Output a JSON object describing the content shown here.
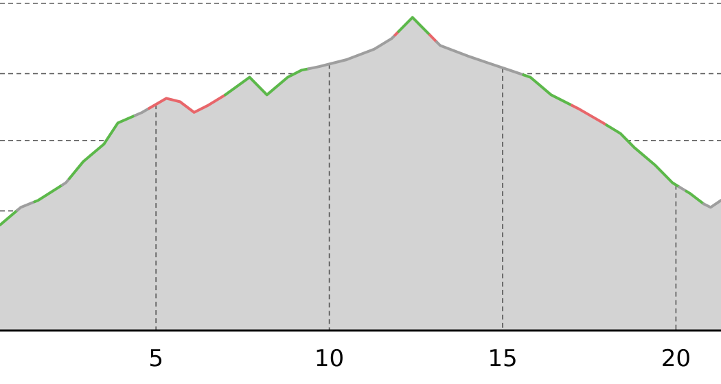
{
  "chart_data": {
    "type": "area",
    "x_unit": "km",
    "xlim": [
      0.5,
      21.3
    ],
    "ylim": [
      0,
      4.6
    ],
    "xticks": [
      {
        "value": 5,
        "label": "5"
      },
      {
        "value": 10,
        "label": "10"
      },
      {
        "value": 15,
        "label": "15"
      },
      {
        "value": 20,
        "label": "20"
      }
    ],
    "y_gridlines": [
      0.7,
      1.7,
      2.7,
      3.65,
      4.65
    ],
    "grid": true,
    "legend": "none",
    "colors": {
      "fill": "#d3d3d3",
      "flat": "#9e9e9e",
      "uphill": "#5cb84a",
      "steep": "#e8666a",
      "gridline": "#555555",
      "axis": "#000000"
    },
    "profile": [
      [
        0.5,
        1.5
      ],
      [
        1.1,
        1.75
      ],
      [
        1.6,
        1.85
      ],
      [
        2.4,
        2.1
      ],
      [
        2.9,
        2.4
      ],
      [
        3.5,
        2.65
      ],
      [
        3.9,
        2.95
      ],
      [
        4.6,
        3.1
      ],
      [
        5.3,
        3.3
      ],
      [
        5.7,
        3.25
      ],
      [
        6.1,
        3.1
      ],
      [
        6.5,
        3.2
      ],
      [
        7.0,
        3.35
      ],
      [
        7.7,
        3.6
      ],
      [
        8.2,
        3.35
      ],
      [
        8.8,
        3.6
      ],
      [
        9.2,
        3.7
      ],
      [
        9.7,
        3.75
      ],
      [
        10.5,
        3.85
      ],
      [
        11.3,
        4.0
      ],
      [
        11.8,
        4.15
      ],
      [
        12.0,
        4.25
      ],
      [
        12.4,
        4.45
      ],
      [
        12.6,
        4.35
      ],
      [
        12.9,
        4.2
      ],
      [
        13.2,
        4.05
      ],
      [
        14.0,
        3.9
      ],
      [
        14.6,
        3.8
      ],
      [
        15.2,
        3.7
      ],
      [
        15.8,
        3.6
      ],
      [
        16.4,
        3.35
      ],
      [
        17.2,
        3.15
      ],
      [
        17.9,
        2.95
      ],
      [
        18.4,
        2.8
      ],
      [
        18.8,
        2.6
      ],
      [
        19.4,
        2.35
      ],
      [
        19.9,
        2.1
      ],
      [
        20.4,
        1.95
      ],
      [
        20.8,
        1.8
      ],
      [
        21.0,
        1.75
      ],
      [
        21.3,
        1.85
      ]
    ],
    "segments": [
      {
        "type": "uphill",
        "from": 0.5,
        "to": 1.0
      },
      {
        "type": "flat",
        "from": 1.0,
        "to": 1.5
      },
      {
        "type": "uphill",
        "from": 1.5,
        "to": 2.3
      },
      {
        "type": "flat",
        "from": 2.3,
        "to": 2.5
      },
      {
        "type": "uphill",
        "from": 2.5,
        "to": 4.4
      },
      {
        "type": "flat",
        "from": 4.4,
        "to": 4.8
      },
      {
        "type": "steep",
        "from": 4.8,
        "to": 5.8
      },
      {
        "type": "steep",
        "from": 5.8,
        "to": 7.0
      },
      {
        "type": "uphill",
        "from": 7.0,
        "to": 9.4
      },
      {
        "type": "flat",
        "from": 9.4,
        "to": 11.9
      },
      {
        "type": "steep",
        "from": 11.9,
        "to": 12.0
      },
      {
        "type": "uphill",
        "from": 12.0,
        "to": 12.9
      },
      {
        "type": "steep",
        "from": 12.9,
        "to": 13.1
      },
      {
        "type": "flat",
        "from": 13.1,
        "to": 15.6
      },
      {
        "type": "uphill",
        "from": 15.6,
        "to": 17.0
      },
      {
        "type": "steep",
        "from": 17.0,
        "to": 18.0
      },
      {
        "type": "uphill",
        "from": 18.0,
        "to": 20.1
      },
      {
        "type": "flat",
        "from": 20.1,
        "to": 20.3
      },
      {
        "type": "uphill",
        "from": 20.3,
        "to": 20.8
      },
      {
        "type": "flat",
        "from": 20.8,
        "to": 21.3
      }
    ]
  }
}
